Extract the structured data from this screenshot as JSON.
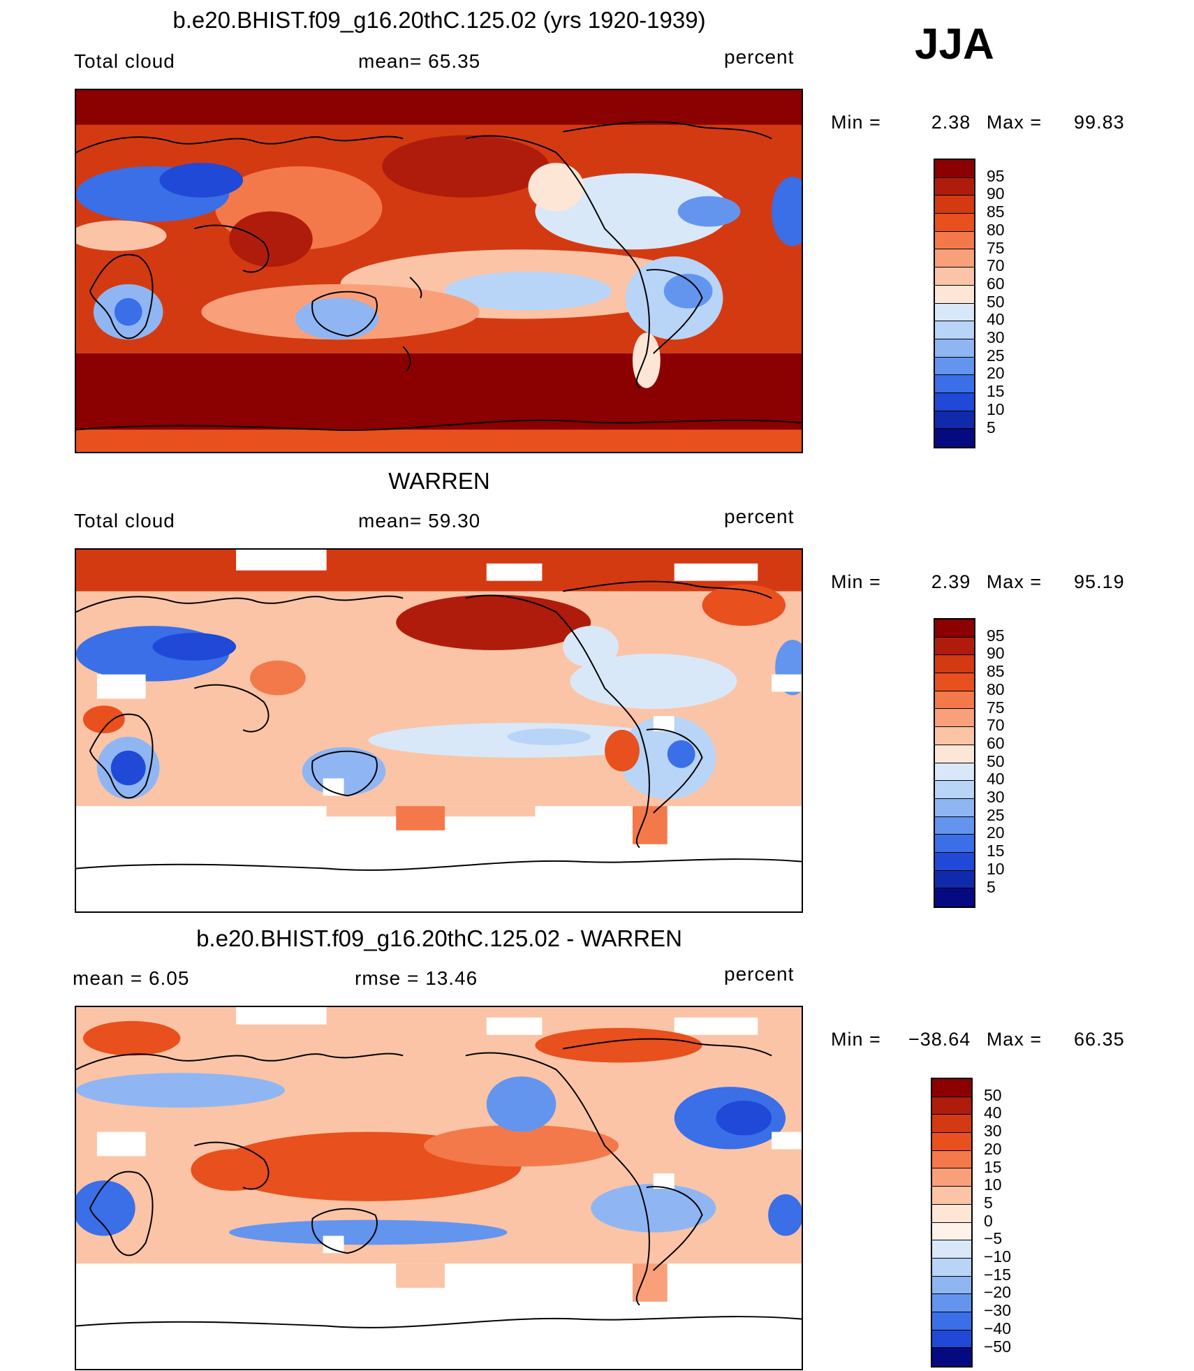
{
  "season": "JJA",
  "panels": [
    {
      "id": "model",
      "title": "b.e20.BHIST.f09_g16.20thC.125.02 (yrs 1920-1939)",
      "left_label": "Total cloud",
      "center_label": "mean=   65.35",
      "right_label": "percent",
      "min_max": {
        "min_text": "Min =",
        "min": "2.38",
        "max_text": "Max =",
        "max": "99.83"
      },
      "colorbar": {
        "labels": [
          "95",
          "90",
          "85",
          "80",
          "75",
          "70",
          "60",
          "50",
          "40",
          "30",
          "25",
          "20",
          "15",
          "10",
          "5"
        ],
        "colors": [
          "#8b0000",
          "#b01c0b",
          "#d43a12",
          "#e8501e",
          "#f4794a",
          "#f9a07a",
          "#fbc4a6",
          "#fde6d6",
          "#d8e8f8",
          "#b8d4f6",
          "#8fb6f3",
          "#6495ee",
          "#3a6fe8",
          "#1f49d6",
          "#0f2aaa",
          "#050a80"
        ]
      }
    },
    {
      "id": "obs",
      "title": "WARREN",
      "left_label": "Total cloud",
      "center_label": "mean=   59.30",
      "right_label": "percent",
      "min_max": {
        "min_text": "Min =",
        "min": "2.39",
        "max_text": "Max =",
        "max": "95.19"
      },
      "colorbar": {
        "labels": [
          "95",
          "90",
          "85",
          "80",
          "75",
          "70",
          "60",
          "50",
          "40",
          "30",
          "25",
          "20",
          "15",
          "10",
          "5"
        ],
        "colors": [
          "#8b0000",
          "#b01c0b",
          "#d43a12",
          "#e8501e",
          "#f4794a",
          "#f9a07a",
          "#fbc4a6",
          "#fde6d6",
          "#d8e8f8",
          "#b8d4f6",
          "#8fb6f3",
          "#6495ee",
          "#3a6fe8",
          "#1f49d6",
          "#0f2aaa",
          "#050a80"
        ]
      }
    },
    {
      "id": "diff",
      "title": "b.e20.BHIST.f09_g16.20thC.125.02 - WARREN",
      "left_label": "mean =     6.05",
      "center_label": "rmse =    13.46",
      "right_label": "percent",
      "min_max": {
        "min_text": "Min =",
        "min": "−38.64",
        "max_text": "Max =",
        "max": "66.35"
      },
      "colorbar": {
        "labels": [
          "50",
          "40",
          "30",
          "20",
          "15",
          "10",
          "5",
          "0",
          "−5",
          "−10",
          "−15",
          "−20",
          "−30",
          "−40",
          "−50"
        ],
        "colors": [
          "#8b0000",
          "#b01c0b",
          "#d43a12",
          "#e8501e",
          "#f4794a",
          "#f9a07a",
          "#fbc4a6",
          "#fde6d6",
          "#fff2ea",
          "#d8e8f8",
          "#b8d4f6",
          "#8fb6f3",
          "#6495ee",
          "#3a6fe8",
          "#1f49d6",
          "#050a80"
        ]
      }
    }
  ]
}
